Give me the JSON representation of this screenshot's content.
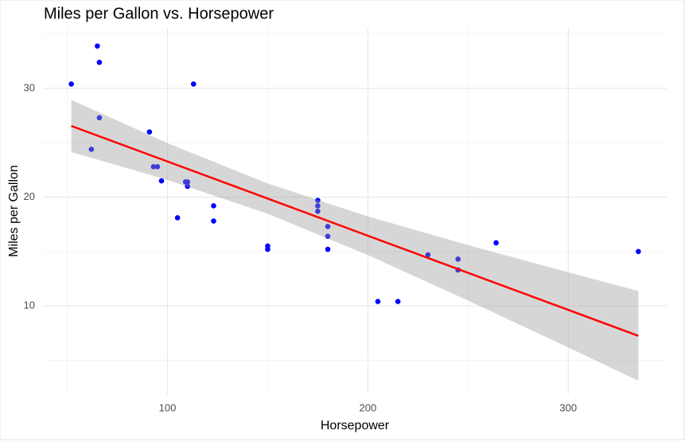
{
  "chart_data": {
    "type": "scatter",
    "title": "Miles per Gallon vs. Horsepower",
    "x_label": "Horsepower",
    "y_label": "Miles per Gallon",
    "x": [
      110,
      110,
      93,
      110,
      175,
      105,
      245,
      62,
      95,
      123,
      123,
      180,
      180,
      180,
      205,
      215,
      230,
      66,
      52,
      65,
      97,
      150,
      150,
      245,
      175,
      66,
      91,
      113,
      264,
      175,
      335,
      109
    ],
    "y": [
      21.0,
      21.0,
      22.8,
      21.4,
      18.7,
      18.1,
      14.3,
      24.4,
      22.8,
      19.2,
      17.8,
      16.4,
      17.3,
      15.2,
      10.4,
      10.4,
      14.7,
      32.4,
      30.4,
      33.9,
      21.5,
      15.5,
      15.2,
      13.3,
      19.2,
      27.3,
      26.0,
      30.4,
      15.8,
      19.7,
      15.0,
      21.4
    ],
    "color": "#0000ff",
    "fit": {
      "x": [
        52,
        100,
        150,
        200,
        250,
        300,
        335
      ],
      "y": [
        26.55,
        23.28,
        19.87,
        16.45,
        13.04,
        9.63,
        7.24
      ],
      "lower": [
        24.15,
        21.59,
        18.47,
        14.67,
        10.49,
        6.17,
        3.11
      ],
      "upper": [
        28.95,
        24.97,
        21.26,
        18.23,
        15.59,
        13.09,
        11.37
      ],
      "color": "#ff0000",
      "band_color": "#999999"
    },
    "xlim": [
      37.85,
      349.15
    ],
    "ylim": [
      1.87,
      35.57
    ],
    "xticks": [
      100,
      200,
      300
    ],
    "yticks": [
      10,
      20,
      30
    ],
    "x_minor_ticks": [
      50,
      150,
      250
    ],
    "y_minor_ticks": [
      5,
      15,
      25,
      35
    ],
    "grid": true
  }
}
